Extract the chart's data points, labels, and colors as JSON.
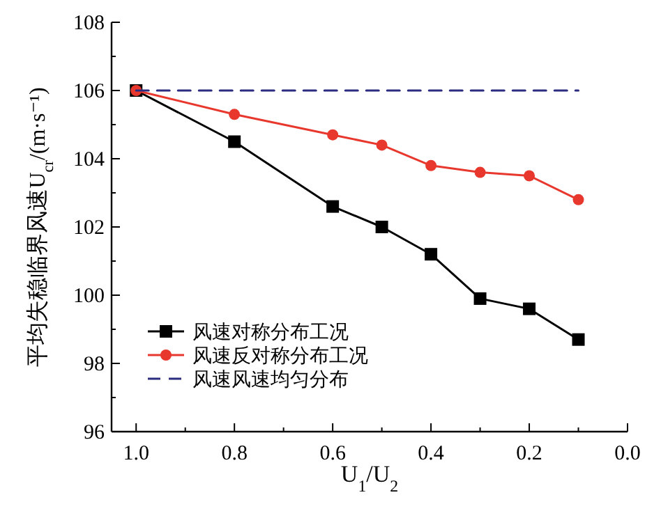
{
  "chart_data": {
    "type": "line",
    "xlabel": "U$_{1}$/U$_{2}$",
    "ylabel": "平均失稳临界风速U$_{cr}$/(m·s⁻¹)",
    "xlim": [
      1.05,
      0
    ],
    "xticks": [
      {
        "value": 1,
        "label": "1.0"
      },
      {
        "value": 0.9,
        "label": null
      },
      0.8,
      {
        "value": 0.7,
        "label": null
      },
      0.6,
      {
        "value": 0.5,
        "label": null
      },
      0.4,
      {
        "value": 0.3,
        "label": null
      },
      0.2,
      {
        "value": 0.1,
        "label": null
      },
      {
        "value": 0,
        "label": "0.0"
      }
    ],
    "ylim": [
      96,
      108
    ],
    "yticks": [
      96,
      {
        "value": 97,
        "label": null
      },
      98,
      {
        "value": 99,
        "label": null
      },
      100,
      {
        "value": 101,
        "label": null
      },
      102,
      {
        "value": 103,
        "label": null
      },
      104,
      {
        "value": 105,
        "label": null
      },
      106,
      {
        "value": 107,
        "label": null
      },
      108
    ],
    "x": [
      1.0,
      0.8,
      0.6,
      0.5,
      0.4,
      0.3,
      0.2,
      0.1
    ],
    "series": [
      {
        "name": "风速对称分布工况",
        "color": "#000000",
        "marker": "square",
        "values": [
          106,
          104.5,
          102.6,
          102.0,
          101.2,
          99.9,
          99.6,
          98.7
        ]
      },
      {
        "name": "风速反对称分布工况",
        "color": "#e8382e",
        "marker": "circle",
        "values": [
          106,
          105.3,
          104.7,
          104.4,
          103.8,
          103.6,
          103.5,
          102.8
        ]
      },
      {
        "name": "风速风速均匀分布",
        "color": "#2b2b80",
        "marker": "none",
        "line_style": "dashed",
        "x": [
          1.0,
          0.1
        ],
        "values": [
          106,
          106
        ]
      }
    ],
    "grid": false,
    "legend": "bottom left"
  }
}
